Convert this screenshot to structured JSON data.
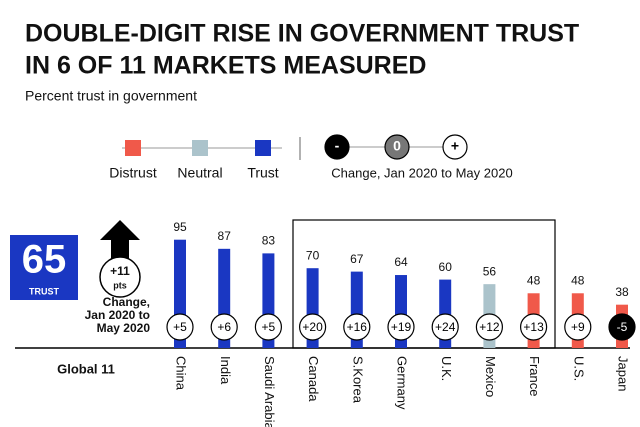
{
  "chart_data": {
    "type": "bar",
    "title": [
      "DOUBLE-DIGIT RISE IN GOVERNMENT TRUST",
      "IN 6 OF 11 MARKETS MEASURED"
    ],
    "subtitle": "Percent trust in government",
    "legend": [
      {
        "name": "Distrust",
        "color": "#f0594a"
      },
      {
        "name": "Neutral",
        "color": "#abc3cb"
      },
      {
        "name": "Trust",
        "color": "#1a37c2"
      }
    ],
    "change_legend": {
      "items": [
        {
          "label": "-",
          "color": "#000000"
        },
        {
          "label": "0",
          "color": "#777777"
        },
        {
          "label": "+",
          "color": "#ffffff"
        }
      ],
      "caption": "Change, Jan 2020 to May 2020"
    },
    "global": {
      "name": "Global 11",
      "value": 65,
      "label": "TRUST",
      "color": "#1a37c2",
      "change": 11,
      "change_label": "+11",
      "change_unit": "pts",
      "change_caption": [
        "Change,",
        "Jan 2020 to",
        "May 2020"
      ]
    },
    "categories": [
      "China",
      "India",
      "Saudi Arabia",
      "Canada",
      "S.Korea",
      "Germany",
      "U.K.",
      "Mexico",
      "France",
      "U.S.",
      "Japan"
    ],
    "values": [
      95,
      87,
      83,
      70,
      67,
      64,
      60,
      56,
      48,
      48,
      38
    ],
    "colors": [
      "#1a37c2",
      "#1a37c2",
      "#1a37c2",
      "#1a37c2",
      "#1a37c2",
      "#1a37c2",
      "#1a37c2",
      "#abc3cb",
      "#f0594a",
      "#f0594a",
      "#f0594a"
    ],
    "changes": {
      "values": [
        5,
        6,
        5,
        20,
        16,
        19,
        24,
        12,
        13,
        9,
        -5
      ],
      "value_labels": [
        "+5",
        "+6",
        "+5",
        "+20",
        "+16",
        "+19",
        "+24",
        "+12",
        "+13",
        "+9",
        "-5"
      ]
    }
  }
}
